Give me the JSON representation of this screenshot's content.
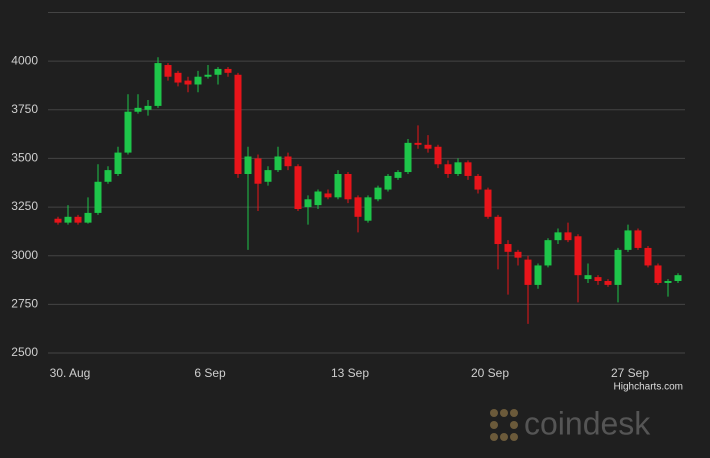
{
  "chart_data": {
    "type": "candlestick",
    "categories": [
      null,
      "30. Aug",
      null,
      null,
      null,
      null,
      null,
      null,
      null,
      null,
      null,
      null,
      null,
      null,
      null,
      "6 Sep",
      null,
      null,
      null,
      null,
      null,
      null,
      null,
      null,
      null,
      null,
      null,
      null,
      null,
      "13 Sep",
      null,
      null,
      null,
      null,
      null,
      null,
      null,
      null,
      null,
      null,
      null,
      null,
      null,
      "20 Sep",
      null,
      null,
      null,
      null,
      null,
      null,
      null,
      null,
      null,
      null,
      null,
      null,
      null,
      "27 Sep",
      null,
      null,
      null,
      null,
      null
    ],
    "open": [
      3190,
      3170,
      3200,
      3170,
      3220,
      3380,
      3420,
      3530,
      3740,
      3750,
      3770,
      3980,
      3940,
      3900,
      3880,
      3920,
      3930,
      3960,
      3930,
      3420,
      3500,
      3380,
      3440,
      3510,
      3460,
      3250,
      3260,
      3320,
      3300,
      3420,
      3300,
      3180,
      3290,
      3340,
      3400,
      3430,
      3580,
      3570,
      3560,
      3470,
      3420,
      3480,
      3410,
      3340,
      3200,
      3060,
      3020,
      2980,
      2850,
      2950,
      3080,
      3120,
      3100,
      2880,
      2890,
      2870,
      2850,
      3030,
      3130,
      3040,
      2950,
      2860,
      2870
    ],
    "high": [
      3200,
      3260,
      3210,
      3300,
      3470,
      3460,
      3560,
      3830,
      3830,
      3800,
      4020,
      3990,
      3950,
      3920,
      3950,
      3980,
      3970,
      3970,
      3940,
      3560,
      3520,
      3460,
      3560,
      3530,
      3470,
      3310,
      3340,
      3340,
      3440,
      3430,
      3310,
      3310,
      3360,
      3420,
      3440,
      3600,
      3670,
      3620,
      3570,
      3490,
      3500,
      3490,
      3420,
      3350,
      3210,
      3080,
      3030,
      3000,
      2960,
      3090,
      3140,
      3170,
      3110,
      2960,
      2900,
      2880,
      3040,
      3160,
      3140,
      3050,
      2960,
      2880,
      2910
    ],
    "low": [
      3160,
      3160,
      3160,
      3165,
      3210,
      3370,
      3410,
      3520,
      3730,
      3720,
      3760,
      3900,
      3870,
      3840,
      3840,
      3910,
      3880,
      3920,
      3400,
      3030,
      3230,
      3360,
      3430,
      3440,
      3230,
      3160,
      3240,
      3290,
      3290,
      3270,
      3120,
      3170,
      3280,
      3330,
      3390,
      3420,
      3550,
      3530,
      3450,
      3400,
      3410,
      3390,
      3320,
      3190,
      2930,
      2800,
      2950,
      2650,
      2830,
      2940,
      3060,
      3070,
      2760,
      2860,
      2850,
      2840,
      2760,
      3020,
      3030,
      2940,
      2850,
      2790,
      2860
    ],
    "close": [
      3170,
      3200,
      3170,
      3220,
      3380,
      3440,
      3530,
      3740,
      3760,
      3770,
      3990,
      3920,
      3890,
      3880,
      3920,
      3930,
      3960,
      3940,
      3420,
      3510,
      3370,
      3440,
      3510,
      3460,
      3240,
      3290,
      3330,
      3300,
      3420,
      3290,
      3200,
      3300,
      3350,
      3410,
      3430,
      3580,
      3570,
      3550,
      3470,
      3420,
      3480,
      3410,
      3340,
      3200,
      3060,
      3020,
      2990,
      2850,
      2950,
      3080,
      3120,
      3080,
      2900,
      2900,
      2870,
      2850,
      3030,
      3130,
      3040,
      2950,
      2860,
      2870,
      2900
    ],
    "up_color": "#1ec64a",
    "down_color": "#e8141a",
    "ylim": [
      2500,
      4250
    ],
    "yticks": [
      2500,
      2750,
      3000,
      3250,
      3500,
      3750,
      4000
    ],
    "grid": true,
    "credits": "Highcharts.com",
    "watermark": "coindesk"
  }
}
